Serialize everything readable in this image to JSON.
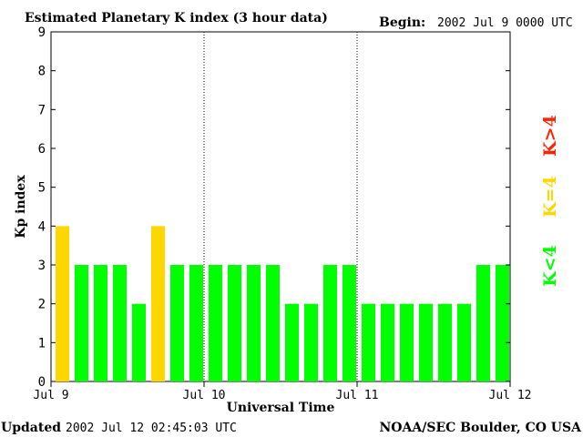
{
  "header": {
    "title": "Estimated Planetary K index (3 hour data)",
    "begin_label": "Begin:",
    "begin_value": "2002 Jul 9 0000 UTC"
  },
  "footer": {
    "updated_label": "Updated",
    "updated_value": "2002 Jul 12 02:45:03 UTC",
    "source": "NOAA/SEC Boulder, CO USA"
  },
  "legend": {
    "below": "K<4",
    "equal": "K=4",
    "above": "K>4"
  },
  "colors": {
    "below": "#00ff00",
    "equal": "#ffd700",
    "above": "#ff2200",
    "axis": "#000000"
  },
  "chart_data": {
    "type": "bar",
    "title": "Estimated Planetary K index (3 hour data)",
    "xlabel": "Universal Time",
    "ylabel": "Kp index",
    "ylim": [
      0,
      9
    ],
    "yticks": [
      0,
      1,
      2,
      3,
      4,
      5,
      6,
      7,
      8,
      9
    ],
    "xtick_labels": [
      "Jul 9",
      "Jul 10",
      "Jul 11",
      "Jul 12"
    ],
    "day_dividers": true,
    "categories": [
      "Jul 9 00-03",
      "Jul 9 03-06",
      "Jul 9 06-09",
      "Jul 9 09-12",
      "Jul 9 12-15",
      "Jul 9 15-18",
      "Jul 9 18-21",
      "Jul 9 21-24",
      "Jul 10 00-03",
      "Jul 10 03-06",
      "Jul 10 06-09",
      "Jul 10 09-12",
      "Jul 10 12-15",
      "Jul 10 15-18",
      "Jul 10 18-21",
      "Jul 10 21-24",
      "Jul 11 00-03",
      "Jul 11 03-06",
      "Jul 11 06-09",
      "Jul 11 09-12",
      "Jul 11 12-15",
      "Jul 11 15-18",
      "Jul 11 18-21",
      "Jul 11 21-24"
    ],
    "values": [
      4,
      3,
      3,
      3,
      2,
      4,
      3,
      3,
      3,
      3,
      3,
      3,
      2,
      2,
      3,
      3,
      2,
      2,
      2,
      2,
      2,
      2,
      3,
      3
    ]
  }
}
